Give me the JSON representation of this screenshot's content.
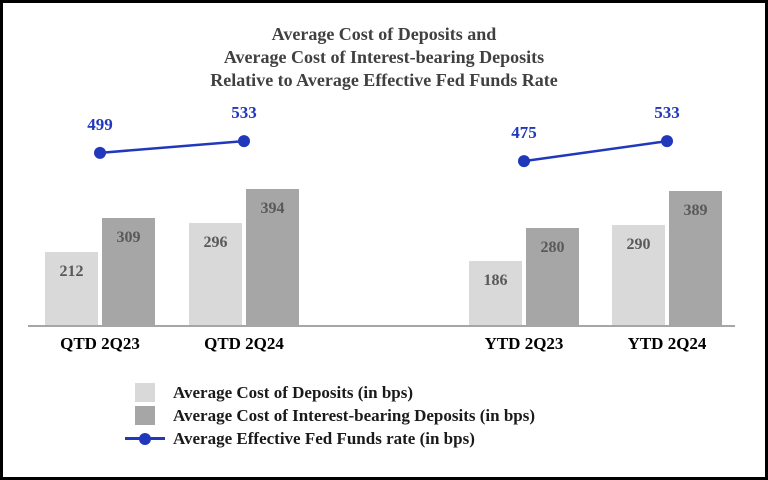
{
  "chart_data": {
    "type": "bar",
    "title_lines": [
      "Average Cost of Deposits and",
      "Average Cost of Interest-bearing Deposits",
      "Relative to Average Effective Fed Funds Rate"
    ],
    "categories": [
      "QTD 2Q23",
      "QTD 2Q24",
      "YTD 2Q23",
      "YTD 2Q24"
    ],
    "series": [
      {
        "name": "Average Cost of Deposits (in bps)",
        "type": "bar",
        "color": "#d9d9d9",
        "values": [
          212,
          296,
          186,
          290
        ]
      },
      {
        "name": "Average Cost of Interest-bearing Deposits (in bps)",
        "type": "bar",
        "color": "#a6a6a6",
        "values": [
          309,
          394,
          280,
          389
        ]
      },
      {
        "name": "Average Effective Fed Funds rate (in bps)",
        "type": "line",
        "color": "#2138bd",
        "values": [
          499,
          533,
          475,
          533
        ],
        "segments": [
          [
            0,
            1
          ],
          [
            2,
            3
          ]
        ]
      }
    ],
    "ylim": [
      0,
      560
    ],
    "grid": false,
    "legend_position": "bottom",
    "xlabel": "",
    "ylabel": "",
    "axis_line_color": "#a6a6a6",
    "bar_label_color": "#595959",
    "title_color": "#404040"
  }
}
